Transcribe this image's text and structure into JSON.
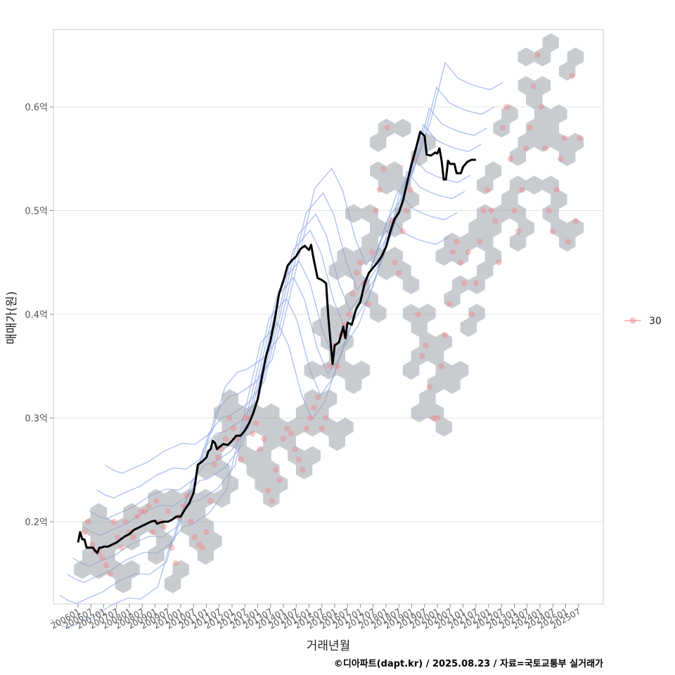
{
  "chart_data": {
    "type": "scatter",
    "xlabel": "거래년월",
    "ylabel": "매매가(원)",
    "ylim": [
      0.125,
      0.68
    ],
    "y_unit": "억",
    "y_ticks": [
      "0.2억",
      "0.3억",
      "0.4억",
      "0.5억",
      "0.6억"
    ],
    "y_tick_values": [
      0.2,
      0.3,
      0.4,
      0.5,
      0.6
    ],
    "x_ticks": [
      "200601",
      "200607",
      "200701",
      "200707",
      "200801",
      "200807",
      "200901",
      "200907",
      "201001",
      "201007",
      "201101",
      "201107",
      "201201",
      "201207",
      "201301",
      "201307",
      "201401",
      "201407",
      "201501",
      "201507",
      "201601",
      "201607",
      "201701",
      "201707",
      "201801",
      "201807",
      "201901",
      "201907",
      "202001",
      "202007",
      "202101",
      "202107",
      "202201",
      "202207",
      "202301",
      "202307",
      "202401",
      "202407",
      "202501",
      "202507"
    ],
    "legend": {
      "label": "30",
      "position": "right"
    },
    "layers": [
      "hexbin density",
      "2d density contours",
      "transaction points",
      "moving average line"
    ],
    "colors": {
      "points": "#f08080",
      "hex": "#9aa3ab",
      "contour": "#8fa8e8",
      "line": "#000000"
    },
    "trend": [
      [
        "200601",
        0.18
      ],
      [
        "200602",
        0.19
      ],
      [
        "200603",
        0.183
      ],
      [
        "200604",
        0.183
      ],
      [
        "200605",
        0.175
      ],
      [
        "200606",
        0.175
      ],
      [
        "200607",
        0.175
      ],
      [
        "200608",
        0.175
      ],
      [
        "200609",
        0.172
      ],
      [
        "200610",
        0.17
      ],
      [
        "200611",
        0.175
      ],
      [
        "200612",
        0.175
      ],
      [
        "200701",
        0.176
      ],
      [
        "200703",
        0.176
      ],
      [
        "200705",
        0.178
      ],
      [
        "200707",
        0.18
      ],
      [
        "200709",
        0.183
      ],
      [
        "200711",
        0.186
      ],
      [
        "200801",
        0.188
      ],
      [
        "200803",
        0.192
      ],
      [
        "200805",
        0.194
      ],
      [
        "200807",
        0.196
      ],
      [
        "200809",
        0.198
      ],
      [
        "200811",
        0.2
      ],
      [
        "200901",
        0.201
      ],
      [
        "200902",
        0.198
      ],
      [
        "200903",
        0.199
      ],
      [
        "200905",
        0.2
      ],
      [
        "200907",
        0.2
      ],
      [
        "200909",
        0.202
      ],
      [
        "200911",
        0.205
      ],
      [
        "201001",
        0.205
      ],
      [
        "201003",
        0.212
      ],
      [
        "201005",
        0.218
      ],
      [
        "201007",
        0.228
      ],
      [
        "201008",
        0.24
      ],
      [
        "201009",
        0.255
      ],
      [
        "201011",
        0.258
      ],
      [
        "201101",
        0.262
      ],
      [
        "201102",
        0.268
      ],
      [
        "201103",
        0.27
      ],
      [
        "201104",
        0.278
      ],
      [
        "201105",
        0.276
      ],
      [
        "201106",
        0.27
      ],
      [
        "201107",
        0.272
      ],
      [
        "201109",
        0.275
      ],
      [
        "201111",
        0.274
      ],
      [
        "201201",
        0.278
      ],
      [
        "201203",
        0.283
      ],
      [
        "201205",
        0.283
      ],
      [
        "201207",
        0.288
      ],
      [
        "201209",
        0.295
      ],
      [
        "201211",
        0.305
      ],
      [
        "201301",
        0.318
      ],
      [
        "201303",
        0.34
      ],
      [
        "201305",
        0.36
      ],
      [
        "201307",
        0.375
      ],
      [
        "201309",
        0.395
      ],
      [
        "201311",
        0.42
      ],
      [
        "201401",
        0.432
      ],
      [
        "201403",
        0.447
      ],
      [
        "201405",
        0.452
      ],
      [
        "201407",
        0.456
      ],
      [
        "201409",
        0.463
      ],
      [
        "201411",
        0.466
      ],
      [
        "201501",
        0.462
      ],
      [
        "201502",
        0.467
      ],
      [
        "201503",
        0.455
      ],
      [
        "201504",
        0.445
      ],
      [
        "201505",
        0.435
      ],
      [
        "201507",
        0.433
      ],
      [
        "201509",
        0.43
      ],
      [
        "201510",
        0.398
      ],
      [
        "201511",
        0.375
      ],
      [
        "201512",
        0.352
      ],
      [
        "201601",
        0.37
      ],
      [
        "201603",
        0.373
      ],
      [
        "201605",
        0.388
      ],
      [
        "201606",
        0.377
      ],
      [
        "201607",
        0.392
      ],
      [
        "201609",
        0.39
      ],
      [
        "201611",
        0.405
      ],
      [
        "201701",
        0.412
      ],
      [
        "201703",
        0.43
      ],
      [
        "201705",
        0.44
      ],
      [
        "201707",
        0.445
      ],
      [
        "201709",
        0.45
      ],
      [
        "201711",
        0.456
      ],
      [
        "201801",
        0.465
      ],
      [
        "201803",
        0.48
      ],
      [
        "201805",
        0.492
      ],
      [
        "201807",
        0.498
      ],
      [
        "201809",
        0.51
      ],
      [
        "201811",
        0.528
      ],
      [
        "201901",
        0.545
      ],
      [
        "201903",
        0.56
      ],
      [
        "201904",
        0.568
      ],
      [
        "201905",
        0.576
      ],
      [
        "201907",
        0.572
      ],
      [
        "201908",
        0.554
      ],
      [
        "201910",
        0.553
      ],
      [
        "201912",
        0.556
      ],
      [
        "202001",
        0.555
      ],
      [
        "202002",
        0.56
      ],
      [
        "202003",
        0.548
      ],
      [
        "202004",
        0.53
      ],
      [
        "202005",
        0.53
      ],
      [
        "202006",
        0.548
      ],
      [
        "202007",
        0.545
      ],
      [
        "202009",
        0.545
      ],
      [
        "202010",
        0.536
      ],
      [
        "202012",
        0.536
      ],
      [
        "202101",
        0.542
      ],
      [
        "202103",
        0.547
      ],
      [
        "202105",
        0.549
      ],
      [
        "202107",
        0.549
      ]
    ],
    "points": [
      [
        0.5,
        0.19
      ],
      [
        0.8,
        0.2
      ],
      [
        1.1,
        0.178
      ],
      [
        1.3,
        0.172
      ],
      [
        1.6,
        0.17
      ],
      [
        1.9,
        0.165
      ],
      [
        2.2,
        0.158
      ],
      [
        2.5,
        0.15
      ],
      [
        2.8,
        0.2
      ],
      [
        3.1,
        0.185
      ],
      [
        3.4,
        0.175
      ],
      [
        3.7,
        0.2
      ],
      [
        4.0,
        0.19
      ],
      [
        4.3,
        0.185
      ],
      [
        4.6,
        0.205
      ],
      [
        4.9,
        0.21
      ],
      [
        5.2,
        0.21
      ],
      [
        5.5,
        0.215
      ],
      [
        5.8,
        0.19
      ],
      [
        6.1,
        0.22
      ],
      [
        6.4,
        0.2
      ],
      [
        6.7,
        0.195
      ],
      [
        7.0,
        0.21
      ],
      [
        7.3,
        0.175
      ],
      [
        7.6,
        0.16
      ],
      [
        7.9,
        0.205
      ],
      [
        8.2,
        0.215
      ],
      [
        8.5,
        0.225
      ],
      [
        8.8,
        0.2
      ],
      [
        9.1,
        0.185
      ],
      [
        9.4,
        0.178
      ],
      [
        9.7,
        0.175
      ],
      [
        10.0,
        0.19
      ],
      [
        10.3,
        0.22
      ],
      [
        10.6,
        0.255
      ],
      [
        10.9,
        0.262
      ],
      [
        11.2,
        0.27
      ],
      [
        11.5,
        0.28
      ],
      [
        11.8,
        0.3
      ],
      [
        12.1,
        0.29
      ],
      [
        12.4,
        0.28
      ],
      [
        12.7,
        0.26
      ],
      [
        13.0,
        0.3
      ],
      [
        13.3,
        0.3
      ],
      [
        13.6,
        0.285
      ],
      [
        13.9,
        0.295
      ],
      [
        14.2,
        0.27
      ],
      [
        14.5,
        0.28
      ],
      [
        14.8,
        0.23
      ],
      [
        15.1,
        0.22
      ],
      [
        15.4,
        0.25
      ],
      [
        15.7,
        0.24
      ],
      [
        16.0,
        0.28
      ],
      [
        16.3,
        0.29
      ],
      [
        16.6,
        0.285
      ],
      [
        16.9,
        0.27
      ],
      [
        17.2,
        0.26
      ],
      [
        17.5,
        0.25
      ],
      [
        17.8,
        0.29
      ],
      [
        18.1,
        0.3
      ],
      [
        18.4,
        0.31
      ],
      [
        18.7,
        0.32
      ],
      [
        19.0,
        0.29
      ],
      [
        19.3,
        0.3
      ],
      [
        19.6,
        0.35
      ],
      [
        19.9,
        0.37
      ],
      [
        20.2,
        0.35
      ],
      [
        20.5,
        0.38
      ],
      [
        20.8,
        0.39
      ],
      [
        21.1,
        0.4
      ],
      [
        21.4,
        0.42
      ],
      [
        21.7,
        0.44
      ],
      [
        22.0,
        0.45
      ],
      [
        22.3,
        0.43
      ],
      [
        22.6,
        0.41
      ],
      [
        22.9,
        0.46
      ],
      [
        23.2,
        0.5
      ],
      [
        23.5,
        0.52
      ],
      [
        23.8,
        0.54
      ],
      [
        24.1,
        0.58
      ],
      [
        24.4,
        0.49
      ],
      [
        24.7,
        0.45
      ],
      [
        25.0,
        0.44
      ],
      [
        25.3,
        0.48
      ],
      [
        25.6,
        0.5
      ],
      [
        25.9,
        0.52
      ],
      [
        26.2,
        0.55
      ],
      [
        26.5,
        0.4
      ],
      [
        26.8,
        0.36
      ],
      [
        27.1,
        0.37
      ],
      [
        27.4,
        0.33
      ],
      [
        27.7,
        0.3
      ],
      [
        28.0,
        0.3
      ],
      [
        28.3,
        0.35
      ],
      [
        28.6,
        0.38
      ],
      [
        28.9,
        0.41
      ],
      [
        29.2,
        0.46
      ],
      [
        29.5,
        0.47
      ],
      [
        29.8,
        0.45
      ],
      [
        30.1,
        0.43
      ],
      [
        30.4,
        0.46
      ],
      [
        30.7,
        0.4
      ],
      [
        31.0,
        0.43
      ],
      [
        31.3,
        0.47
      ],
      [
        31.6,
        0.5
      ],
      [
        31.9,
        0.52
      ],
      [
        32.2,
        0.5
      ],
      [
        32.5,
        0.49
      ],
      [
        32.8,
        0.45
      ],
      [
        33.1,
        0.58
      ],
      [
        33.4,
        0.6
      ],
      [
        33.7,
        0.55
      ],
      [
        34.0,
        0.5
      ],
      [
        34.3,
        0.48
      ],
      [
        34.6,
        0.52
      ],
      [
        34.9,
        0.56
      ],
      [
        35.2,
        0.58
      ],
      [
        35.5,
        0.62
      ],
      [
        35.8,
        0.65
      ],
      [
        36.1,
        0.6
      ],
      [
        36.4,
        0.56
      ],
      [
        36.7,
        0.5
      ],
      [
        37.0,
        0.48
      ],
      [
        37.3,
        0.52
      ],
      [
        37.6,
        0.55
      ],
      [
        37.9,
        0.57
      ],
      [
        38.2,
        0.47
      ],
      [
        38.5,
        0.63
      ],
      [
        38.8,
        0.49
      ],
      [
        39.1,
        0.57
      ]
    ]
  },
  "caption": "©디아파트(dapt.kr) / 2025.08.23 / 자료=국토교통부 실거래가"
}
